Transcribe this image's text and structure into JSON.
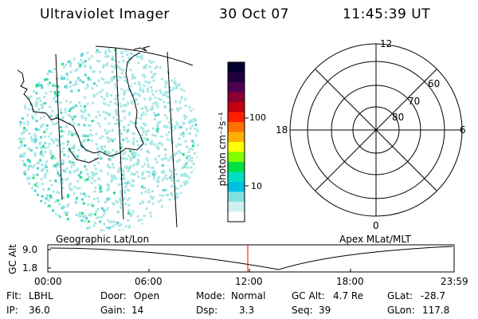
{
  "header": {
    "title": "Ultraviolet Imager",
    "date": "30 Oct 07",
    "time": "11:45:39 UT"
  },
  "geo_panel": {
    "label": "Geographic Lat/Lon"
  },
  "colorbar": {
    "unit_label": "photon cm⁻²s⁻¹",
    "tick_labels": [
      "100",
      "10"
    ],
    "scale": "log",
    "colors": [
      "#000030",
      "#200040",
      "#500050",
      "#8a0030",
      "#c00010",
      "#ff2000",
      "#ff7000",
      "#ffb000",
      "#ffff00",
      "#80ff00",
      "#00e040",
      "#00e0c0",
      "#00c0e0",
      "#80e0e0",
      "#d0f0f0",
      "#ffffff"
    ]
  },
  "polar_panel": {
    "label": "Apex MLat/MLT",
    "mlt_labels": {
      "top": "12",
      "right": "6",
      "bottom": "0",
      "left": "18"
    },
    "lat_labels": [
      "60",
      "70",
      "80"
    ]
  },
  "timeline": {
    "ylabel": "GC Alt",
    "y_ticks": [
      "9.0",
      "1.8"
    ],
    "x_ticks": [
      "00:00",
      "06:00",
      "12:00",
      "18:00",
      "23:59"
    ],
    "current_time_marker": "11:45:39"
  },
  "status": {
    "flt_label": "Flt:",
    "flt_value": "LBHL",
    "ip_label": "IP:",
    "ip_value": "36.0",
    "door_label": "Door:",
    "door_value": "Open",
    "gain_label": "Gain:",
    "gain_value": "14",
    "mode_label": "Mode:",
    "mode_value": "Normal",
    "dsp_label": "Dsp:",
    "dsp_value": "3.3",
    "gcalt_label": "GC Alt:",
    "gcalt_value": "4.7 Re",
    "seq_label": "Seq:",
    "seq_value": "39",
    "glat_label": "GLat:",
    "glat_value": "-28.7",
    "glon_label": "GLon:",
    "glon_value": "117.8"
  },
  "colors": {
    "aurora_main": "#a8e6e6",
    "aurora_bright": "#4fd0d0",
    "aurora_green": "#20e080",
    "marker": "#ff0000"
  }
}
